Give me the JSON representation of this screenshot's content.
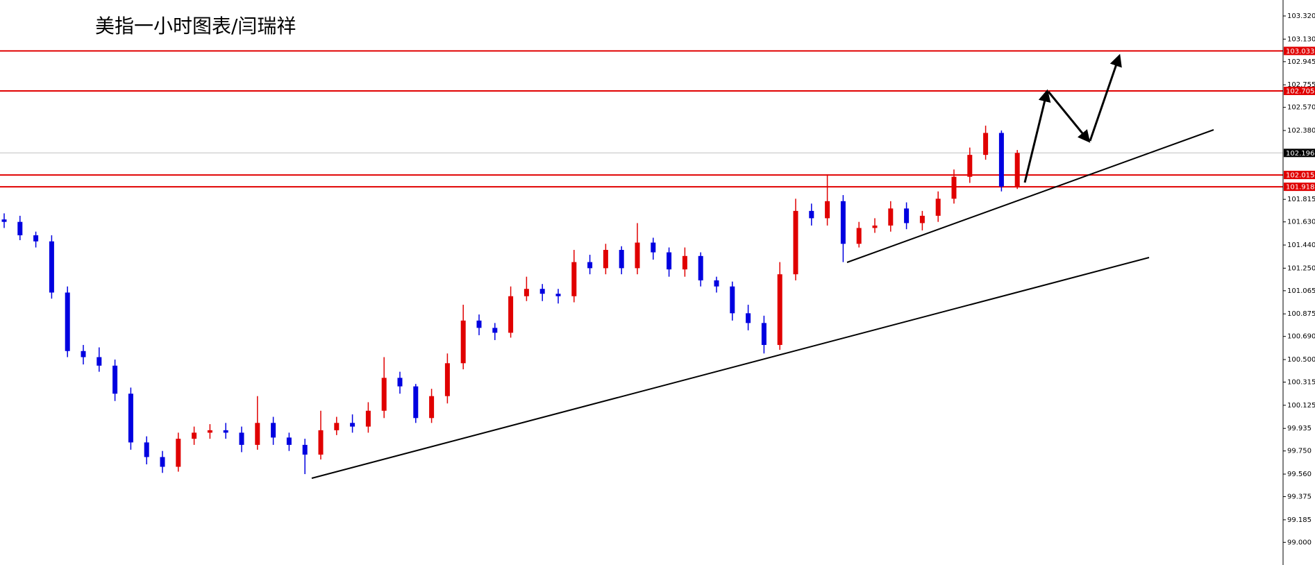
{
  "chart_data": {
    "type": "candlestick",
    "title": "美指一小时图表/闫瑞祥",
    "up_color": "#e00000",
    "down_color": "#0000e0",
    "categories": [
      null,
      null,
      null,
      null,
      null,
      null,
      null,
      null,
      null,
      null,
      null,
      null,
      null,
      null,
      null,
      null,
      null,
      null,
      null,
      null,
      null,
      null,
      null,
      null,
      null,
      null,
      null,
      null,
      null,
      null,
      null,
      null,
      null,
      null,
      null,
      null,
      null,
      null,
      null,
      null,
      null,
      null,
      null,
      null,
      null,
      null,
      null,
      null,
      null,
      null,
      null,
      null,
      null,
      null,
      null,
      null,
      null,
      null,
      null,
      null,
      null,
      null,
      null,
      null,
      null
    ],
    "open": [
      101.65,
      101.63,
      101.52,
      101.47,
      101.05,
      100.57,
      100.52,
      100.45,
      100.22,
      99.82,
      99.7,
      99.62,
      99.85,
      99.9,
      99.92,
      99.9,
      99.8,
      99.98,
      99.86,
      99.8,
      99.72,
      99.92,
      99.98,
      99.95,
      100.08,
      100.35,
      100.28,
      100.02,
      100.2,
      100.47,
      100.82,
      100.76,
      100.72,
      101.02,
      101.08,
      101.04,
      101.02,
      101.3,
      101.25,
      101.4,
      101.25,
      101.46,
      101.38,
      101.24,
      101.35,
      101.15,
      101.1,
      100.88,
      100.8,
      100.62,
      101.2,
      101.72,
      101.66,
      101.8,
      101.45,
      101.58,
      101.6,
      101.74,
      101.62,
      101.68,
      101.82,
      102.0,
      102.18,
      102.36,
      101.92
    ],
    "close": [
      101.63,
      101.52,
      101.47,
      101.05,
      100.57,
      100.52,
      100.45,
      100.22,
      99.82,
      99.7,
      99.62,
      99.85,
      99.9,
      99.92,
      99.9,
      99.8,
      99.98,
      99.86,
      99.8,
      99.72,
      99.92,
      99.98,
      99.95,
      100.08,
      100.35,
      100.28,
      100.02,
      100.2,
      100.47,
      100.82,
      100.76,
      100.72,
      101.02,
      101.08,
      101.04,
      101.02,
      101.3,
      101.25,
      101.4,
      101.25,
      101.46,
      101.38,
      101.24,
      101.35,
      101.15,
      101.1,
      100.88,
      100.8,
      100.62,
      101.2,
      101.72,
      101.66,
      101.8,
      101.45,
      101.58,
      101.6,
      101.74,
      101.62,
      101.68,
      101.82,
      102.0,
      102.18,
      102.36,
      101.92,
      102.196
    ],
    "high": [
      101.7,
      101.68,
      101.55,
      101.52,
      101.1,
      100.62,
      100.6,
      100.5,
      100.27,
      99.87,
      99.75,
      99.9,
      99.95,
      99.97,
      99.98,
      99.95,
      100.2,
      100.03,
      99.9,
      99.85,
      100.08,
      100.03,
      100.05,
      100.15,
      100.52,
      100.4,
      100.3,
      100.26,
      100.55,
      100.95,
      100.87,
      100.8,
      101.1,
      101.18,
      101.12,
      101.08,
      101.4,
      101.36,
      101.45,
      101.43,
      101.62,
      101.5,
      101.42,
      101.42,
      101.38,
      101.18,
      101.14,
      100.95,
      100.86,
      101.3,
      101.82,
      101.78,
      102.02,
      101.85,
      101.63,
      101.66,
      101.8,
      101.79,
      101.72,
      101.88,
      102.06,
      102.24,
      102.42,
      102.38,
      102.22
    ],
    "low": [
      101.58,
      101.48,
      101.42,
      101.0,
      100.52,
      100.46,
      100.4,
      100.16,
      99.76,
      99.64,
      99.57,
      99.58,
      99.8,
      99.85,
      99.85,
      99.74,
      99.76,
      99.8,
      99.75,
      99.56,
      99.68,
      99.88,
      99.9,
      99.9,
      100.02,
      100.22,
      99.98,
      99.98,
      100.14,
      100.42,
      100.7,
      100.66,
      100.68,
      100.98,
      100.98,
      100.96,
      100.97,
      101.2,
      101.2,
      101.2,
      101.2,
      101.32,
      101.18,
      101.18,
      101.1,
      101.05,
      100.82,
      100.74,
      100.55,
      100.58,
      101.15,
      101.6,
      101.6,
      101.3,
      101.42,
      101.54,
      101.55,
      101.57,
      101.56,
      101.63,
      101.78,
      101.95,
      102.14,
      101.88,
      101.9
    ],
    "levels": [
      103.033,
      102.705,
      102.015,
      101.918
    ],
    "level_color": "#e00000",
    "last_price": 102.196,
    "ylim": [
      98.814,
      103.451
    ],
    "yticks": [
      {
        "value": 103.32,
        "label": "103.320"
      },
      {
        "value": 103.13,
        "label": "103.130"
      },
      102.945,
      102.755,
      {
        "value": 102.57,
        "label": "102.570"
      },
      {
        "value": 102.38,
        "label": "102.380"
      },
      101.815,
      {
        "value": 101.63,
        "label": "101.630"
      },
      {
        "value": 101.44,
        "label": "101.440"
      },
      {
        "value": 101.25,
        "label": "101.250"
      },
      101.065,
      100.875,
      {
        "value": 100.69,
        "label": "100.690"
      },
      {
        "value": 100.5,
        "label": "100.500"
      },
      100.315,
      100.125,
      99.935,
      {
        "value": 99.75,
        "label": "99.750"
      },
      {
        "value": 99.56,
        "label": "99.560"
      },
      99.375,
      99.185,
      {
        "value": 99,
        "label": "99.000"
      }
    ]
  }
}
